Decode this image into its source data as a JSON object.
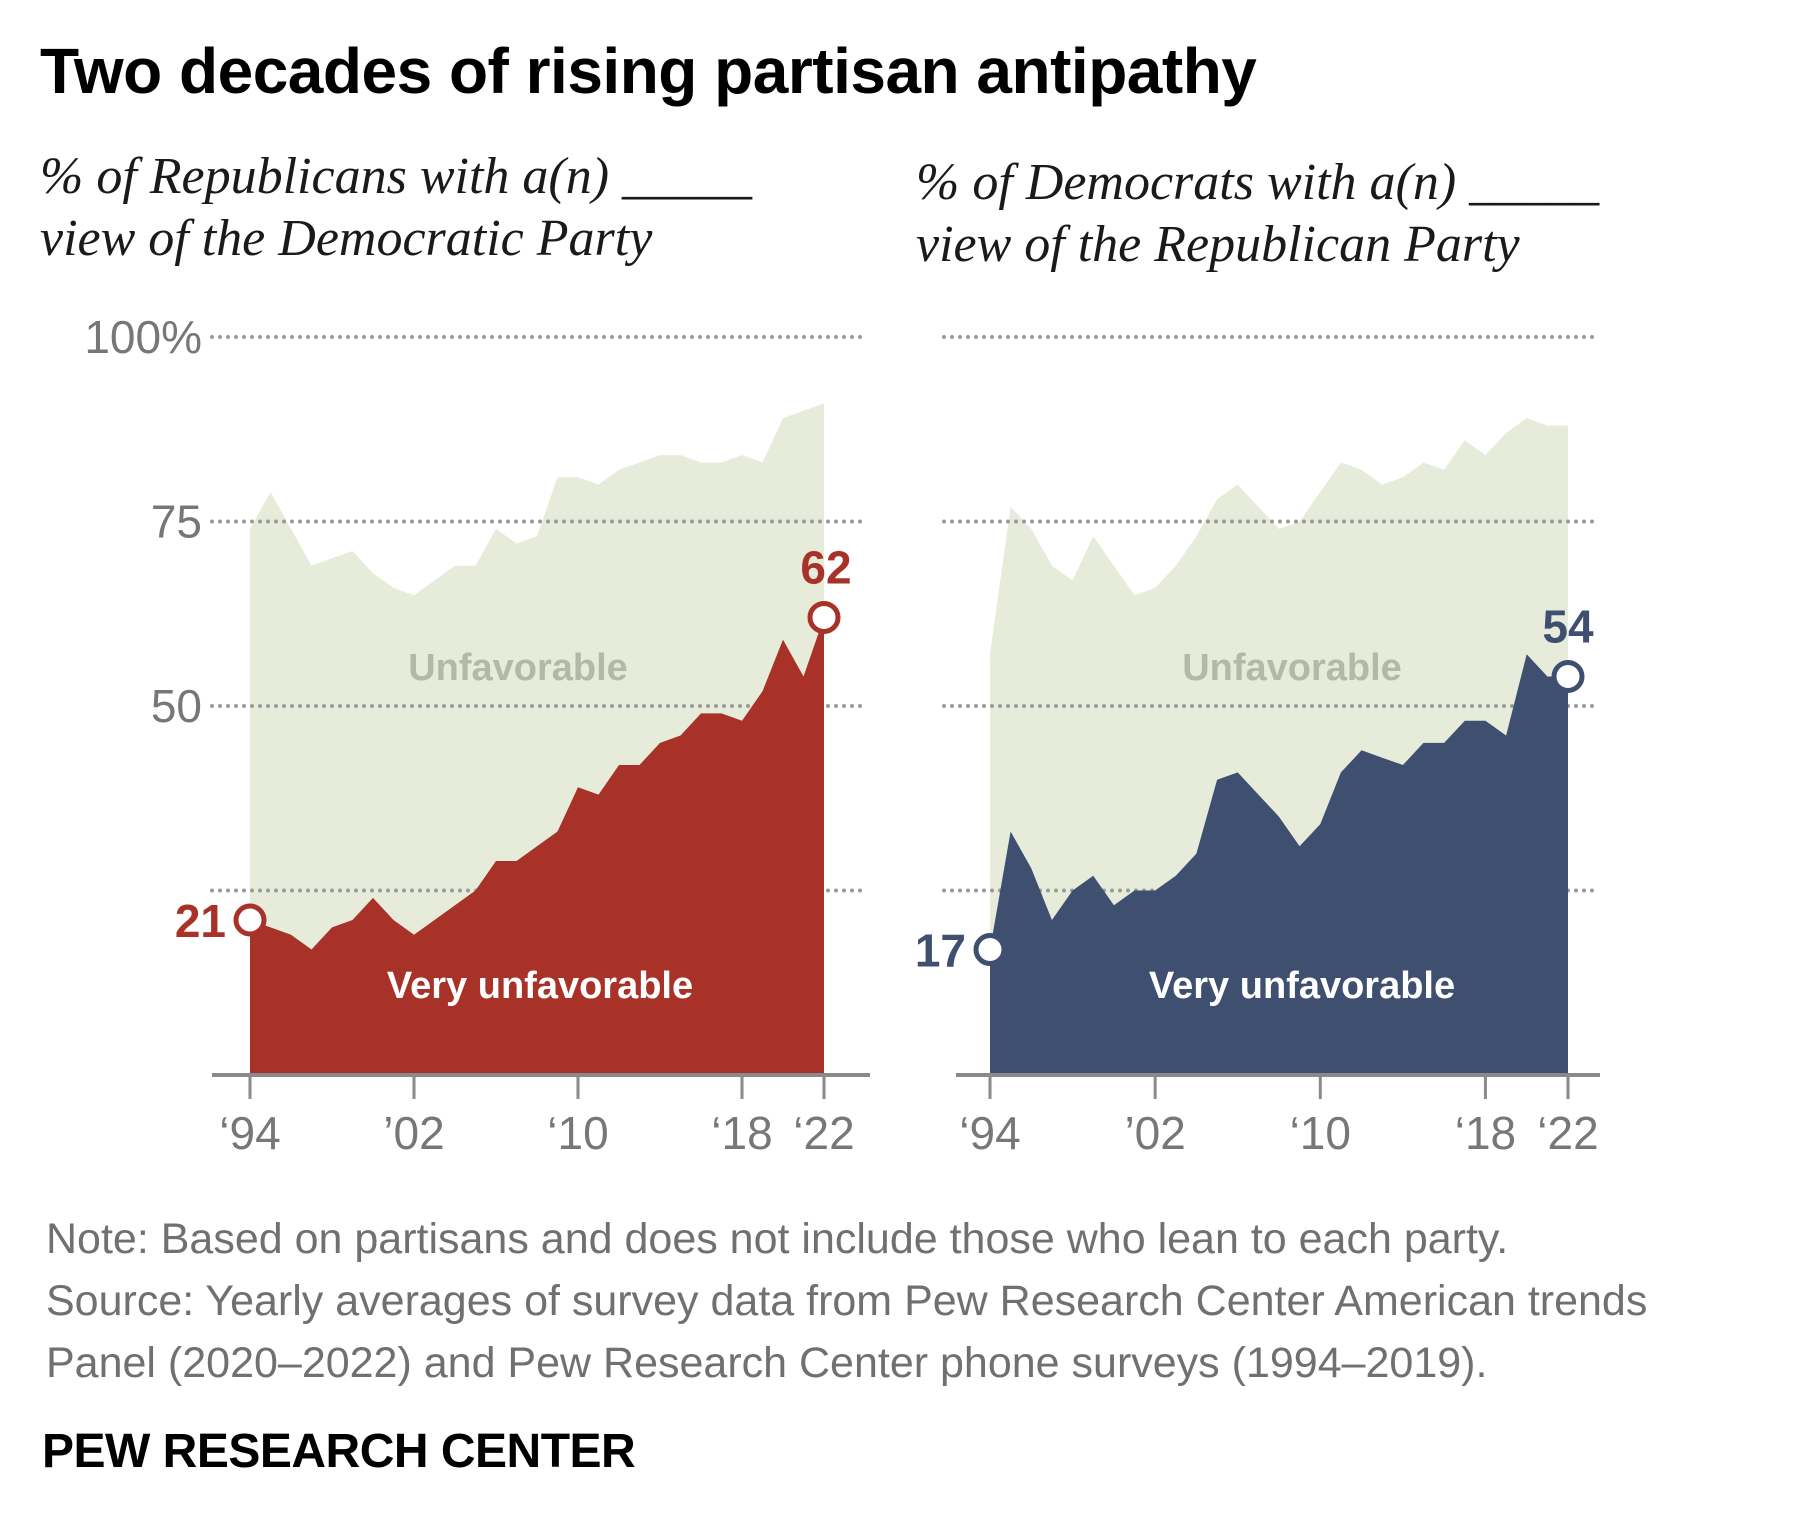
{
  "title": "Two decades of rising partisan antipathy",
  "notes": {
    "note": "Note: Based on partisans and does not include those who lean to each party.",
    "source": "Source: Yearly averages of survey data from Pew Research Center American trends\nPanel (2020–2022) and Pew Research Center phone surveys (1994–2019)."
  },
  "brand": "PEW RESEARCH CENTER",
  "colors": {
    "unfavorable": "#e6ebda",
    "republicans_very": "#a83228",
    "democrats_very": "#3f4f70",
    "grid": "#9a9a9a",
    "axis": "#8a8a8a",
    "tick_text": "#777777",
    "area_label": "#b3b8a8"
  },
  "chart_data": [
    {
      "type": "area",
      "subtitle": "% of Republicans with a(n) _____\nview of the Democratic Party",
      "x": [
        1994,
        1995,
        1996,
        1997,
        1998,
        1999,
        2000,
        2001,
        2002,
        2003,
        2004,
        2005,
        2006,
        2007,
        2008,
        2009,
        2010,
        2011,
        2012,
        2013,
        2014,
        2015,
        2016,
        2017,
        2018,
        2019,
        2020,
        2021,
        2022
      ],
      "x_tick_values": [
        1994,
        2002,
        2010,
        2018,
        2022
      ],
      "x_tick_labels": [
        "‘94",
        "’02",
        "‘10",
        "‘18",
        "‘22"
      ],
      "y_ticks": [
        100,
        75,
        50
      ],
      "y_tick_labels": [
        "100%",
        "75",
        "50"
      ],
      "y_gridlines": [
        100,
        75,
        50,
        25
      ],
      "ylim": [
        0,
        100
      ],
      "series": [
        {
          "name": "Unfavorable",
          "values": [
            74,
            79,
            74,
            69,
            70,
            71,
            68,
            66,
            65,
            67,
            69,
            69,
            74,
            72,
            73,
            81,
            81,
            80,
            82,
            83,
            84,
            84,
            83,
            83,
            84,
            83,
            89,
            90,
            91
          ]
        },
        {
          "name": "Very unfavorable",
          "values": [
            21,
            20,
            19,
            17,
            20,
            21,
            24,
            21,
            19,
            21,
            23,
            25,
            29,
            29,
            31,
            33,
            39,
            38,
            42,
            42,
            45,
            46,
            49,
            49,
            48,
            52,
            59,
            54,
            62
          ]
        }
      ],
      "annotations": [
        {
          "x": 1994,
          "value": 21,
          "label": "21"
        },
        {
          "x": 2022,
          "value": 62,
          "label": "62"
        }
      ]
    },
    {
      "type": "area",
      "subtitle": "% of Democrats with a(n) _____\nview of the Republican Party",
      "x": [
        1994,
        1995,
        1996,
        1997,
        1998,
        1999,
        2000,
        2001,
        2002,
        2003,
        2004,
        2005,
        2006,
        2007,
        2008,
        2009,
        2010,
        2011,
        2012,
        2013,
        2014,
        2015,
        2016,
        2017,
        2018,
        2019,
        2020,
        2021,
        2022
      ],
      "x_tick_values": [
        1994,
        2002,
        2010,
        2018,
        2022
      ],
      "x_tick_labels": [
        "‘94",
        "’02",
        "‘10",
        "‘18",
        "‘22"
      ],
      "y_ticks": [
        100,
        75,
        50
      ],
      "y_tick_labels": [],
      "y_gridlines": [
        100,
        75,
        50,
        25
      ],
      "ylim": [
        0,
        100
      ],
      "series": [
        {
          "name": "Unfavorable",
          "values": [
            57,
            77,
            74,
            69,
            67,
            73,
            69,
            65,
            66,
            69,
            73,
            78,
            80,
            77,
            74,
            75,
            79,
            83,
            82,
            80,
            81,
            83,
            82,
            86,
            84,
            87,
            89,
            88,
            88
          ]
        },
        {
          "name": "Very unfavorable",
          "values": [
            17,
            33,
            28,
            21,
            25,
            27,
            23,
            25,
            25,
            27,
            30,
            40,
            41,
            38,
            35,
            31,
            34,
            41,
            44,
            43,
            42,
            45,
            45,
            48,
            48,
            46,
            57,
            54,
            54
          ]
        }
      ],
      "annotations": [
        {
          "x": 1994,
          "value": 17,
          "label": "17"
        },
        {
          "x": 2022,
          "value": 54,
          "label": "54"
        }
      ]
    }
  ]
}
